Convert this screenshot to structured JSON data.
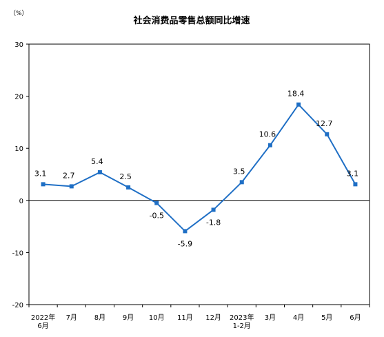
{
  "chart_data": {
    "type": "line",
    "title": "社会消费品零售总额同比增速",
    "unit_label": "（%）",
    "categories": [
      [
        "2022年",
        "6月"
      ],
      [
        "7月"
      ],
      [
        "8月"
      ],
      [
        "9月"
      ],
      [
        "10月"
      ],
      [
        "11月"
      ],
      [
        "12月"
      ],
      [
        "2023年",
        "1-2月"
      ],
      [
        "3月"
      ],
      [
        "4月"
      ],
      [
        "5月"
      ],
      [
        "6月"
      ]
    ],
    "values": [
      3.1,
      2.7,
      5.4,
      2.5,
      -0.5,
      -5.9,
      -1.8,
      3.5,
      10.6,
      18.4,
      12.7,
      3.1
    ],
    "data_labels": [
      "3.1",
      "2.7",
      "5.4",
      "2.5",
      "-0.5",
      "-5.9",
      "-1.8",
      "3.5",
      "10.6",
      "18.4",
      "12.7",
      "3.1"
    ],
    "yticks": [
      30,
      20,
      10,
      0,
      -10,
      -20
    ],
    "ylim": [
      -20,
      30
    ],
    "xlabel": "",
    "ylabel": "",
    "grid": false,
    "line_color": "#1f6fc5",
    "zero_line_color": "#000000"
  }
}
